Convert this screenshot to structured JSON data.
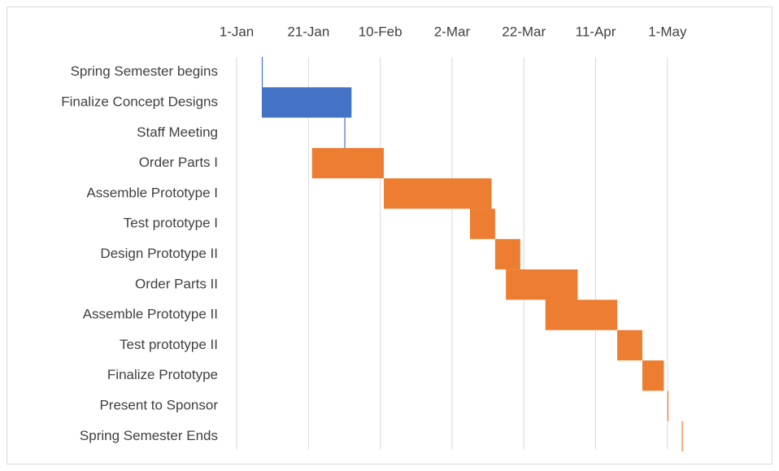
{
  "chart_data": {
    "type": "gantt",
    "categories": [
      "Spring Semester begins",
      "Finalize Concept Designs",
      "Staff Meeting",
      "Order Parts I",
      "Assemble Prototype I",
      "Test prototype I",
      "Design Prototype II",
      "Order Parts II",
      "Assemble Prototype II",
      "Test prototype II",
      "Finalize Prototype",
      "Present to Sponsor",
      "Spring Semester Ends"
    ],
    "start": [
      7,
      7,
      30,
      21,
      41,
      65,
      72,
      75,
      86,
      106,
      113,
      120,
      124
    ],
    "duration": [
      0,
      25,
      0,
      20,
      30,
      7,
      7,
      20,
      20,
      7,
      6,
      0,
      0
    ],
    "colors": [
      "#4472c4",
      "#4472c4",
      "#4472c4",
      "#ed7d31",
      "#ed7d31",
      "#ed7d31",
      "#ed7d31",
      "#ed7d31",
      "#ed7d31",
      "#ed7d31",
      "#ed7d31",
      "#ed7d31",
      "#ed7d31"
    ],
    "xlim": [
      0,
      130
    ],
    "xticks": [
      {
        "value": 0,
        "label": "1-Jan"
      },
      {
        "value": 20,
        "label": "21-Jan"
      },
      {
        "value": 40,
        "label": "10-Feb"
      },
      {
        "value": 60,
        "label": "2-Mar"
      },
      {
        "value": 80,
        "label": "22-Mar"
      },
      {
        "value": 100,
        "label": "11-Apr"
      },
      {
        "value": 120,
        "label": "1-May"
      }
    ],
    "grid": true
  }
}
